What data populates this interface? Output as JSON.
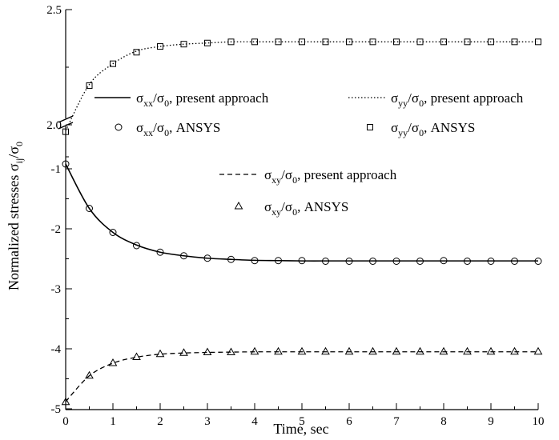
{
  "chart_data": {
    "type": "line",
    "xlabel": "Time, sec",
    "ylabel": "Normalized stresses σij/σ0",
    "xlim": [
      0,
      10
    ],
    "x_ticks": [
      "0",
      "1",
      "2",
      "3",
      "4",
      "5",
      "6",
      "7",
      "8",
      "9",
      "10"
    ],
    "y_upper_range": [
      1.9,
      2.5
    ],
    "y_upper_ticks": [
      "2.0",
      "2.5"
    ],
    "y_lower_range": [
      -5,
      -0.6
    ],
    "y_lower_ticks": [
      "-1",
      "-2",
      "-3",
      "-4",
      "-5"
    ],
    "y_axis_broken": true,
    "grid": false,
    "legend_placement": "inside, top-middle",
    "x": [
      0,
      0.5,
      1,
      1.5,
      2,
      2.5,
      3,
      3.5,
      4,
      4.5,
      5,
      5.5,
      6,
      6.5,
      7,
      7.5,
      8,
      8.5,
      9,
      9.5,
      10
    ],
    "series": [
      {
        "name": "σxx/σ0, present approach",
        "style": "solid",
        "values": [
          -0.92,
          -1.66,
          -2.06,
          -2.27,
          -2.39,
          -2.45,
          -2.49,
          -2.51,
          -2.525,
          -2.53,
          -2.535,
          -2.535,
          -2.535,
          -2.535,
          -2.535,
          -2.535,
          -2.535,
          -2.535,
          -2.535,
          -2.535,
          -2.535
        ]
      },
      {
        "name": "σxx/σ0, ANSYS",
        "marker": "circle",
        "values": [
          -0.92,
          -1.66,
          -2.06,
          -2.28,
          -2.39,
          -2.45,
          -2.49,
          -2.51,
          -2.53,
          -2.53,
          -2.53,
          -2.54,
          -2.54,
          -2.54,
          -2.54,
          -2.54,
          -2.53,
          -2.54,
          -2.54,
          -2.54,
          -2.54
        ]
      },
      {
        "name": "σyy/σ0, present approach",
        "style": "dotted",
        "values": [
          1.975,
          2.175,
          2.265,
          2.32,
          2.34,
          2.35,
          2.355,
          2.36,
          2.36,
          2.36,
          2.36,
          2.36,
          2.36,
          2.36,
          2.36,
          2.36,
          2.36,
          2.36,
          2.36,
          2.36,
          2.36
        ]
      },
      {
        "name": "σyy/σ0, ANSYS",
        "marker": "square",
        "values": [
          1.97,
          2.17,
          2.265,
          2.315,
          2.34,
          2.35,
          2.355,
          2.36,
          2.36,
          2.36,
          2.36,
          2.36,
          2.36,
          2.36,
          2.36,
          2.36,
          2.36,
          2.36,
          2.36,
          2.36,
          2.36
        ]
      },
      {
        "name": "σxy/σ0, present approach",
        "style": "dashed",
        "values": [
          -4.88,
          -4.45,
          -4.24,
          -4.14,
          -4.09,
          -4.07,
          -4.06,
          -4.055,
          -4.05,
          -4.05,
          -4.05,
          -4.05,
          -4.05,
          -4.05,
          -4.05,
          -4.05,
          -4.05,
          -4.05,
          -4.05,
          -4.05,
          -4.05
        ]
      },
      {
        "name": "σxy/σ0, ANSYS",
        "marker": "triangle",
        "values": [
          -4.89,
          -4.45,
          -4.24,
          -4.14,
          -4.09,
          -4.07,
          -4.06,
          -4.06,
          -4.05,
          -4.05,
          -4.05,
          -4.05,
          -4.05,
          -4.05,
          -4.05,
          -4.05,
          -4.05,
          -4.05,
          -4.05,
          -4.05,
          -4.05
        ]
      }
    ],
    "legend": {
      "xx_line": {
        "sym": "σ",
        "sub": "xx",
        "mid": "/σ",
        "sub2": "0",
        "tail": ", present approach"
      },
      "yy_line": {
        "sym": "σ",
        "sub": "yy",
        "mid": "/σ",
        "sub2": "0",
        "tail": ", present approach"
      },
      "xx_ansys": {
        "sym": "σ",
        "sub": "xx",
        "mid": "/σ",
        "sub2": "0",
        "tail": ", ANSYS"
      },
      "yy_ansys": {
        "sym": "σ",
        "sub": "yy",
        "mid": "/σ",
        "sub2": "0",
        "tail": ", ANSYS"
      },
      "xy_line": {
        "sym": "σ",
        "sub": "xy",
        "mid": "/σ",
        "sub2": "0",
        "tail": ", present approach"
      },
      "xy_ansys": {
        "sym": "σ",
        "sub": "xy",
        "mid": "/σ",
        "sub2": "0",
        "tail": ", ANSYS"
      }
    },
    "ylabel_parts": {
      "main": "Normalized stresses σ",
      "sub": "ij",
      "mid": "/σ",
      "sub2": "0"
    }
  }
}
